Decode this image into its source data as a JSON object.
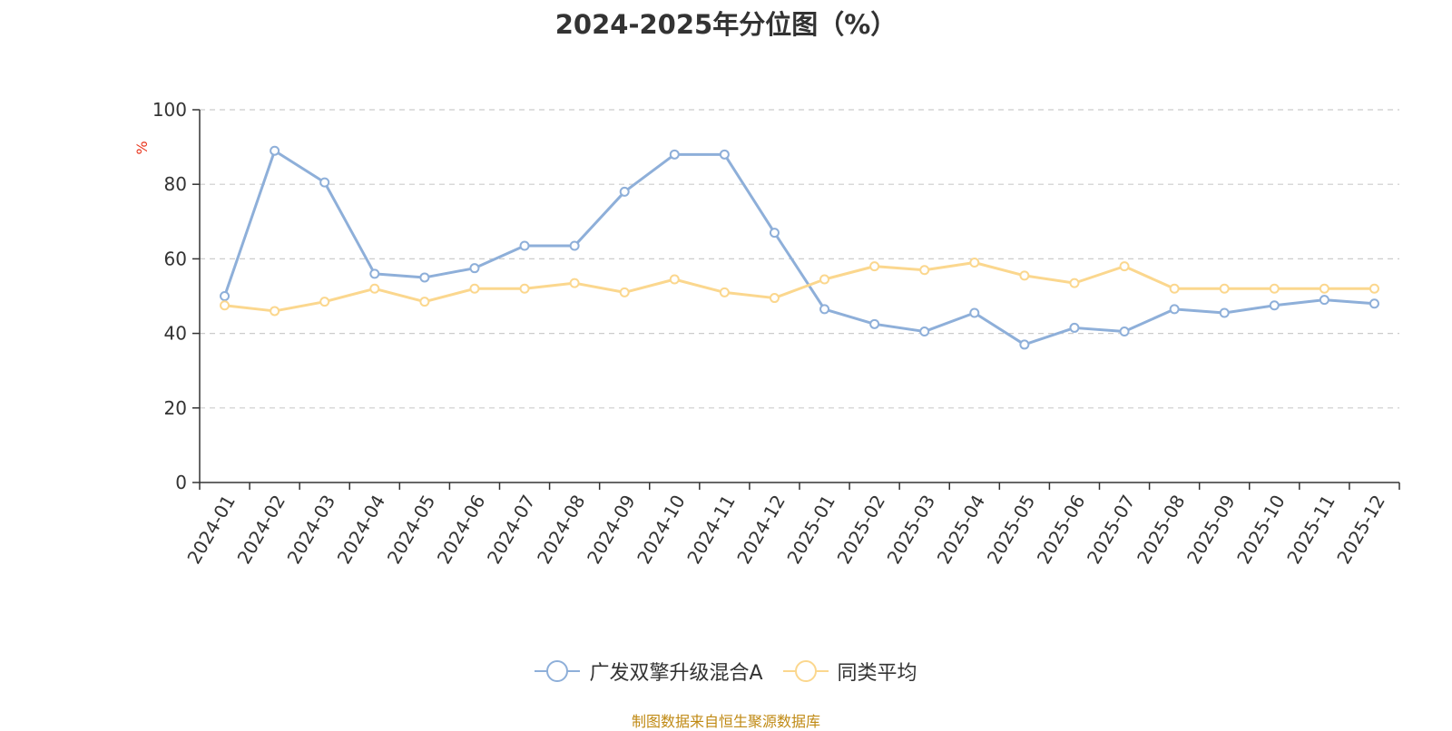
{
  "chart_data": {
    "type": "line",
    "title": "2024-2025年分位图（%）",
    "ylabel": "%",
    "xlabel": "",
    "ylim": [
      0,
      100
    ],
    "yticks": [
      0,
      20,
      40,
      60,
      80,
      100
    ],
    "categories": [
      "2024-01",
      "2024-02",
      "2024-03",
      "2024-04",
      "2024-05",
      "2024-06",
      "2024-07",
      "2024-08",
      "2024-09",
      "2024-10",
      "2024-11",
      "2024-12",
      "2025-01",
      "2025-02",
      "2025-03",
      "2025-04",
      "2025-05",
      "2025-06",
      "2025-07",
      "2025-08",
      "2025-09",
      "2025-10",
      "2025-11",
      "2025-12"
    ],
    "series": [
      {
        "name": "广发双擎升级混合A",
        "color": "#8eafd9",
        "values": [
          50,
          89,
          80.5,
          56,
          55,
          57.5,
          63.5,
          63.5,
          78,
          88,
          88,
          67,
          46.5,
          42.5,
          40.5,
          45.5,
          37,
          41.5,
          40.5,
          46.5,
          45.5,
          47.5,
          49,
          48
        ]
      },
      {
        "name": "同类平均",
        "color": "#fbd78e",
        "values": [
          47.5,
          46,
          48.5,
          52,
          48.5,
          52,
          52,
          53.5,
          51,
          54.5,
          51,
          49.5,
          54.5,
          58,
          57,
          59,
          55.5,
          53.5,
          58,
          52,
          52,
          52,
          52,
          52
        ]
      }
    ],
    "grid": true,
    "legend_position": "bottom-center",
    "ylabel_color": "#e8341c"
  },
  "source_text": "制图数据来自恒生聚源数据库",
  "source_color": "#c08a14"
}
